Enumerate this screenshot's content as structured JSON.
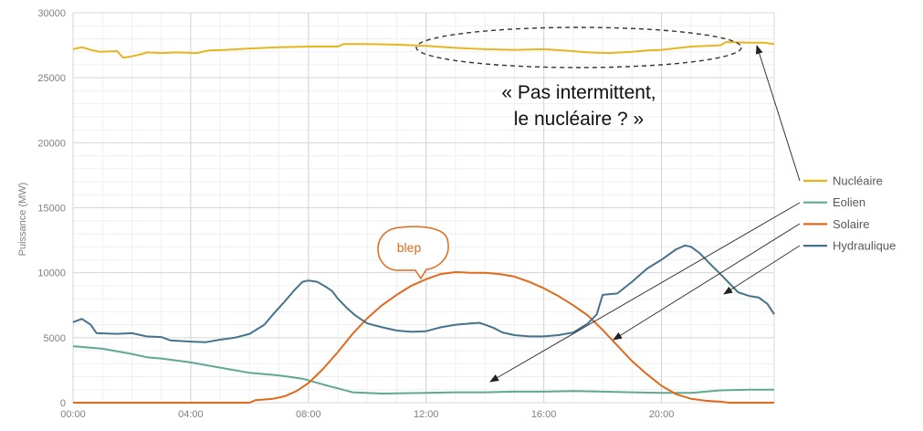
{
  "chart_data": {
    "type": "line",
    "title": "",
    "xlabel": "",
    "ylabel": "Puissance (MW)",
    "xlim": [
      0,
      23.83
    ],
    "ylim": [
      0,
      30000
    ],
    "grid": true,
    "legend_placement": "right",
    "x_ticks": [
      "00:00",
      "04:00",
      "08:00",
      "12:00",
      "16:00",
      "20:00"
    ],
    "x_tick_hours": [
      0,
      4,
      8,
      12,
      16,
      20
    ],
    "y_ticks": [
      0,
      5000,
      10000,
      15000,
      20000,
      25000,
      30000
    ],
    "y_tick_labels": [
      "0",
      "5000",
      "10000",
      "15000",
      "20000",
      "25000",
      "30000"
    ],
    "series": [
      {
        "name": "Nucléaire",
        "color": "#e8b51e",
        "points": [
          [
            0,
            27200
          ],
          [
            0.3,
            27350
          ],
          [
            0.6,
            27150
          ],
          [
            0.9,
            27000
          ],
          [
            1.5,
            27050
          ],
          [
            1.7,
            26550
          ],
          [
            2,
            26650
          ],
          [
            2.3,
            26800
          ],
          [
            2.5,
            26950
          ],
          [
            3,
            26900
          ],
          [
            3.5,
            26950
          ],
          [
            4.2,
            26900
          ],
          [
            4.6,
            27100
          ],
          [
            5.2,
            27150
          ],
          [
            6,
            27250
          ],
          [
            7,
            27350
          ],
          [
            8,
            27400
          ],
          [
            9,
            27400
          ],
          [
            9.2,
            27600
          ],
          [
            10,
            27600
          ],
          [
            11,
            27550
          ],
          [
            12,
            27450
          ],
          [
            13,
            27300
          ],
          [
            14,
            27200
          ],
          [
            15,
            27150
          ],
          [
            16,
            27200
          ],
          [
            17,
            27050
          ],
          [
            17.5,
            26950
          ],
          [
            18.2,
            26900
          ],
          [
            19,
            27000
          ],
          [
            19.5,
            27100
          ],
          [
            20,
            27150
          ],
          [
            21,
            27400
          ],
          [
            22,
            27500
          ],
          [
            22.2,
            27750
          ],
          [
            23,
            27700
          ],
          [
            23.5,
            27700
          ],
          [
            23.83,
            27600
          ]
        ]
      },
      {
        "name": "Eolien",
        "color": "#5fa894",
        "points": [
          [
            0,
            4350
          ],
          [
            1,
            4150
          ],
          [
            2,
            3750
          ],
          [
            2.5,
            3500
          ],
          [
            3,
            3400
          ],
          [
            4,
            3100
          ],
          [
            5,
            2700
          ],
          [
            6,
            2300
          ],
          [
            7,
            2100
          ],
          [
            7.8,
            1850
          ],
          [
            8.5,
            1400
          ],
          [
            9,
            1100
          ],
          [
            9.5,
            800
          ],
          [
            10.5,
            700
          ],
          [
            12,
            750
          ],
          [
            13,
            800
          ],
          [
            14,
            800
          ],
          [
            15,
            850
          ],
          [
            16,
            850
          ],
          [
            17,
            900
          ],
          [
            18,
            850
          ],
          [
            19,
            800
          ],
          [
            20,
            750
          ],
          [
            21,
            750
          ],
          [
            21.5,
            850
          ],
          [
            22,
            950
          ],
          [
            23,
            1000
          ],
          [
            23.83,
            1000
          ]
        ]
      },
      {
        "name": "Solaire",
        "color": "#e06a1c",
        "points": [
          [
            0,
            0
          ],
          [
            6,
            0
          ],
          [
            6.2,
            200
          ],
          [
            6.8,
            300
          ],
          [
            7.2,
            500
          ],
          [
            7.6,
            900
          ],
          [
            8,
            1500
          ],
          [
            8.5,
            2600
          ],
          [
            9,
            3900
          ],
          [
            9.5,
            5300
          ],
          [
            10,
            6500
          ],
          [
            10.5,
            7500
          ],
          [
            11,
            8300
          ],
          [
            11.5,
            9000
          ],
          [
            12,
            9500
          ],
          [
            12.5,
            9900
          ],
          [
            13,
            10050
          ],
          [
            13.5,
            10000
          ],
          [
            14,
            10000
          ],
          [
            14.5,
            9900
          ],
          [
            15,
            9700
          ],
          [
            15.5,
            9300
          ],
          [
            16,
            8800
          ],
          [
            16.5,
            8200
          ],
          [
            17,
            7500
          ],
          [
            17.5,
            6700
          ],
          [
            18,
            5600
          ],
          [
            18.5,
            4400
          ],
          [
            19,
            3200
          ],
          [
            19.5,
            2200
          ],
          [
            20,
            1300
          ],
          [
            20.5,
            650
          ],
          [
            21,
            300
          ],
          [
            21.5,
            150
          ],
          [
            22,
            80
          ],
          [
            22.3,
            0
          ],
          [
            23.83,
            0
          ]
        ]
      },
      {
        "name": "Hydraulique",
        "color": "#46738c",
        "points": [
          [
            0,
            6200
          ],
          [
            0.3,
            6450
          ],
          [
            0.6,
            6000
          ],
          [
            0.8,
            5350
          ],
          [
            1.5,
            5300
          ],
          [
            2,
            5350
          ],
          [
            2.5,
            5100
          ],
          [
            3,
            5050
          ],
          [
            3.3,
            4800
          ],
          [
            4,
            4700
          ],
          [
            4.5,
            4650
          ],
          [
            5,
            4850
          ],
          [
            5.5,
            5000
          ],
          [
            6,
            5300
          ],
          [
            6.5,
            6000
          ],
          [
            6.8,
            6800
          ],
          [
            7.2,
            7800
          ],
          [
            7.5,
            8600
          ],
          [
            7.8,
            9300
          ],
          [
            8,
            9400
          ],
          [
            8.3,
            9300
          ],
          [
            8.6,
            8900
          ],
          [
            8.8,
            8600
          ],
          [
            9,
            8000
          ],
          [
            9.3,
            7300
          ],
          [
            9.6,
            6700
          ],
          [
            10,
            6100
          ],
          [
            10.5,
            5800
          ],
          [
            11,
            5550
          ],
          [
            11.5,
            5450
          ],
          [
            12,
            5500
          ],
          [
            12.5,
            5800
          ],
          [
            13,
            6000
          ],
          [
            13.5,
            6100
          ],
          [
            13.8,
            6150
          ],
          [
            14,
            6000
          ],
          [
            14.3,
            5750
          ],
          [
            14.6,
            5400
          ],
          [
            15,
            5200
          ],
          [
            15.5,
            5100
          ],
          [
            16,
            5100
          ],
          [
            16.5,
            5200
          ],
          [
            17,
            5400
          ],
          [
            17.5,
            6100
          ],
          [
            17.8,
            6800
          ],
          [
            18,
            8300
          ],
          [
            18.5,
            8400
          ],
          [
            19,
            9300
          ],
          [
            19.5,
            10300
          ],
          [
            20,
            11000
          ],
          [
            20.5,
            11800
          ],
          [
            20.8,
            12100
          ],
          [
            21,
            12000
          ],
          [
            21.3,
            11500
          ],
          [
            21.6,
            10800
          ],
          [
            22,
            9900
          ],
          [
            22.3,
            9200
          ],
          [
            22.6,
            8500
          ],
          [
            23,
            8200
          ],
          [
            23.3,
            8100
          ],
          [
            23.6,
            7600
          ],
          [
            23.83,
            6800
          ]
        ]
      }
    ],
    "annotations": {
      "quote_line1": "« Pas intermittent,",
      "quote_line2": "le nucléaire ? »",
      "bubble": "blep"
    }
  }
}
